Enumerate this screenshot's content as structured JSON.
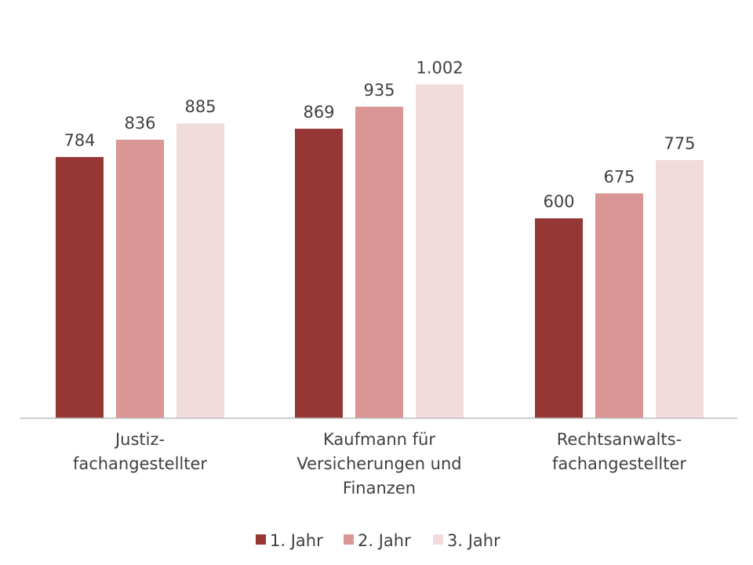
{
  "chart_data": {
    "type": "bar",
    "categories": [
      [
        "Justiz-",
        "fachangestellter"
      ],
      [
        "Kaufmann für",
        "Versicherungen und",
        "Finanzen"
      ],
      [
        "Rechtsanwalts-",
        "fachangestellter"
      ]
    ],
    "series": [
      {
        "name": "1. Jahr",
        "color": "#953735",
        "values": [
          784,
          869,
          600
        ],
        "labels": [
          "784",
          "869",
          "600"
        ]
      },
      {
        "name": "2. Jahr",
        "color": "#d99694",
        "values": [
          836,
          935,
          675
        ],
        "labels": [
          "836",
          "935",
          "675"
        ]
      },
      {
        "name": "3. Jahr",
        "color": "#f2dcdb",
        "values": [
          885,
          1002,
          775
        ],
        "labels": [
          "885",
          "1.002",
          "775"
        ]
      }
    ],
    "ylim": [
      0,
      1000
    ],
    "grid": false,
    "legend_position": "bottom",
    "axis_color": "#bfbfbf"
  }
}
